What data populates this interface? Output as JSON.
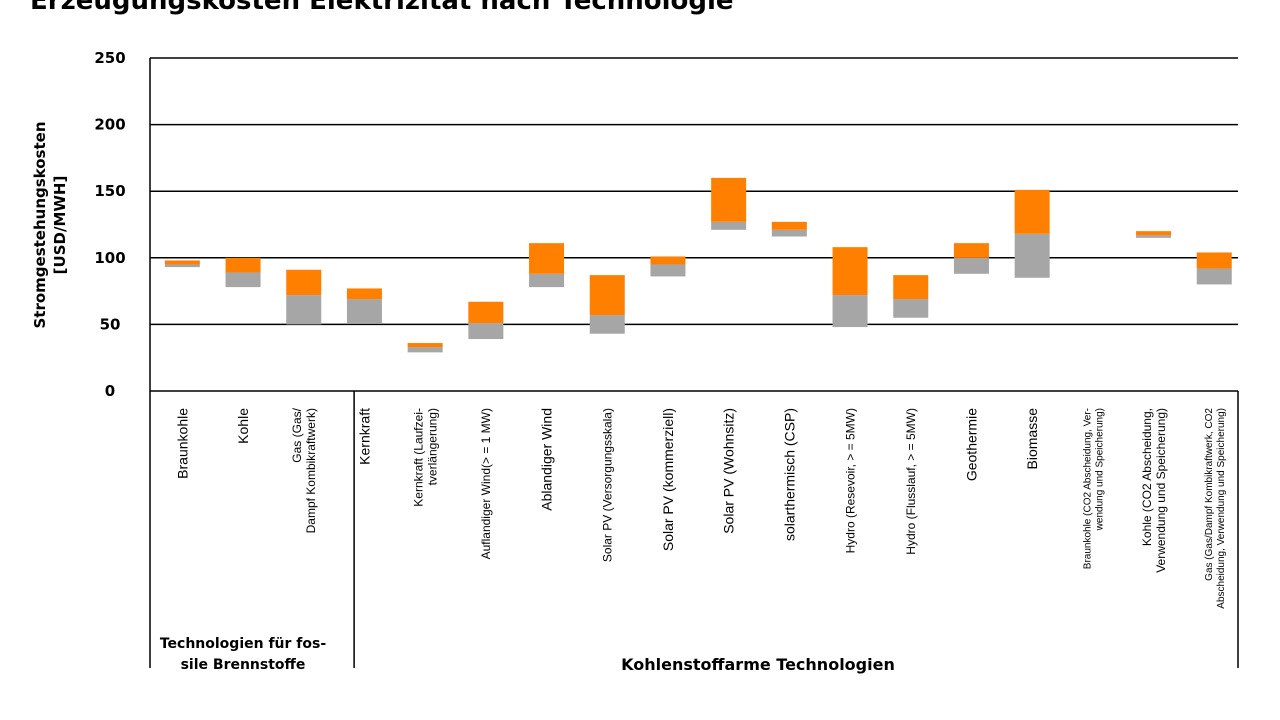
{
  "title": "Erzeugungskosten Elektrizität nach Technologie",
  "chart_data": {
    "type": "bar",
    "ylabel": [
      "Stromgestehungskosten",
      "[USD/MWH]"
    ],
    "ylim": [
      0,
      250
    ],
    "yticks": [
      0,
      50,
      100,
      150,
      200,
      250
    ],
    "grid": true,
    "colors": {
      "lower": "#a6a6a6",
      "upper": "#ff7f00"
    },
    "categories": [
      {
        "label": [
          "Braunkohle"
        ],
        "min": 93,
        "mid": 95,
        "max": 98
      },
      {
        "label": [
          "Kohle"
        ],
        "min": 78,
        "mid": 89,
        "max": 100
      },
      {
        "label": [
          "Gas (Gas/",
          "Dampf Kombikraftwerk)"
        ],
        "min": 50,
        "mid": 72,
        "max": 91
      },
      {
        "label": [
          "Kernkraft"
        ],
        "min": 51,
        "mid": 69,
        "max": 77
      },
      {
        "label": [
          "Kernkraft (Laufzei-",
          "tverlängerung)"
        ],
        "min": 29,
        "mid": 33,
        "max": 36
      },
      {
        "label": [
          "Auflandiger Wind(> = 1 MW)"
        ],
        "min": 39,
        "mid": 51,
        "max": 67
      },
      {
        "label": [
          "Ablandiger Wind"
        ],
        "min": 78,
        "mid": 88,
        "max": 111
      },
      {
        "label": [
          "Solar PV (Versorgungsskala)"
        ],
        "min": 43,
        "mid": 57,
        "max": 87
      },
      {
        "label": [
          "Solar PV (kommerziell)"
        ],
        "min": 86,
        "mid": 95,
        "max": 101
      },
      {
        "label": [
          "Solar PV (Wohnsitz)"
        ],
        "min": 121,
        "mid": 127,
        "max": 160
      },
      {
        "label": [
          "solarthermisch (CSP)"
        ],
        "min": 116,
        "mid": 121,
        "max": 127
      },
      {
        "label": [
          "Hydro (Resevoir, > = 5MW)"
        ],
        "min": 48,
        "mid": 72,
        "max": 108
      },
      {
        "label": [
          "Hydro (Flusslauf, > = 5MW)"
        ],
        "min": 55,
        "mid": 69,
        "max": 87
      },
      {
        "label": [
          "Geothermie"
        ],
        "min": 88,
        "mid": 100,
        "max": 111
      },
      {
        "label": [
          "Biomasse"
        ],
        "min": 85,
        "mid": 118,
        "max": 151
      },
      {
        "label": [
          "Braunkohle (CO2 Abscheidung, Ver-",
          "wendung und Speicherung)"
        ],
        "min": null,
        "mid": null,
        "max": null
      },
      {
        "label": [
          "Kohle (CO2 Abscheidung,",
          "Verwendung und Speicherung)"
        ],
        "min": 115,
        "mid": 117,
        "max": 120
      },
      {
        "label": [
          "Gas (Gas/Dampf Kombikraftwerk, CO2",
          "Abscheidung, Verwendung und Speicherung)"
        ],
        "min": 80,
        "mid": 92,
        "max": 104
      }
    ],
    "groups": [
      {
        "label": [
          "Technologien für fos-",
          "sile Brennstoffe"
        ],
        "from": 0,
        "to": 2
      },
      {
        "label": [
          "Kohlenstoffarme Technologien"
        ],
        "from": 3,
        "to": 17
      }
    ]
  }
}
